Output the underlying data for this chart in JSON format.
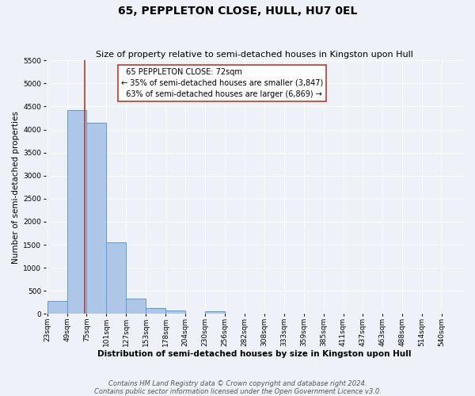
{
  "title": "65, PEPPLETON CLOSE, HULL, HU7 0EL",
  "subtitle": "Size of property relative to semi-detached houses in Kingston upon Hull",
  "bar_labels": [
    "23sqm",
    "49sqm",
    "75sqm",
    "101sqm",
    "127sqm",
    "153sqm",
    "178sqm",
    "204sqm",
    "230sqm",
    "256sqm",
    "282sqm",
    "308sqm",
    "333sqm",
    "359sqm",
    "385sqm",
    "411sqm",
    "437sqm",
    "463sqm",
    "488sqm",
    "514sqm",
    "540sqm"
  ],
  "bar_heights": [
    290,
    4420,
    4150,
    1550,
    330,
    120,
    70,
    0,
    55,
    0,
    0,
    0,
    0,
    0,
    0,
    0,
    0,
    0,
    0,
    0,
    0
  ],
  "bar_color": "#aec6e8",
  "bar_edge_color": "#5b9bd5",
  "ylim": [
    0,
    5500
  ],
  "yticks": [
    0,
    500,
    1000,
    1500,
    2000,
    2500,
    3000,
    3500,
    4000,
    4500,
    5000,
    5500
  ],
  "ylabel": "Number of semi-detached properties",
  "xlabel": "Distribution of semi-detached houses by size in Kingston upon Hull",
  "vline_x": 72,
  "vline_color": "#c0392b",
  "property_label": "65 PEPPLETON CLOSE: 72sqm",
  "pct_smaller": 35,
  "count_smaller": 3847,
  "pct_larger": 63,
  "count_larger": 6869,
  "box_facecolor": "white",
  "box_edgecolor": "#c0392b",
  "footnote1": "Contains HM Land Registry data © Crown copyright and database right 2024.",
  "footnote2": "Contains public sector information licensed under the Open Government Licence v3.0.",
  "bg_color": "#eef2f8",
  "grid_color": "white",
  "title_fontsize": 10,
  "subtitle_fontsize": 8,
  "axis_label_fontsize": 7.5,
  "tick_fontsize": 6.5,
  "annotation_fontsize": 7,
  "footnote_fontsize": 6,
  "bin_width": 26
}
